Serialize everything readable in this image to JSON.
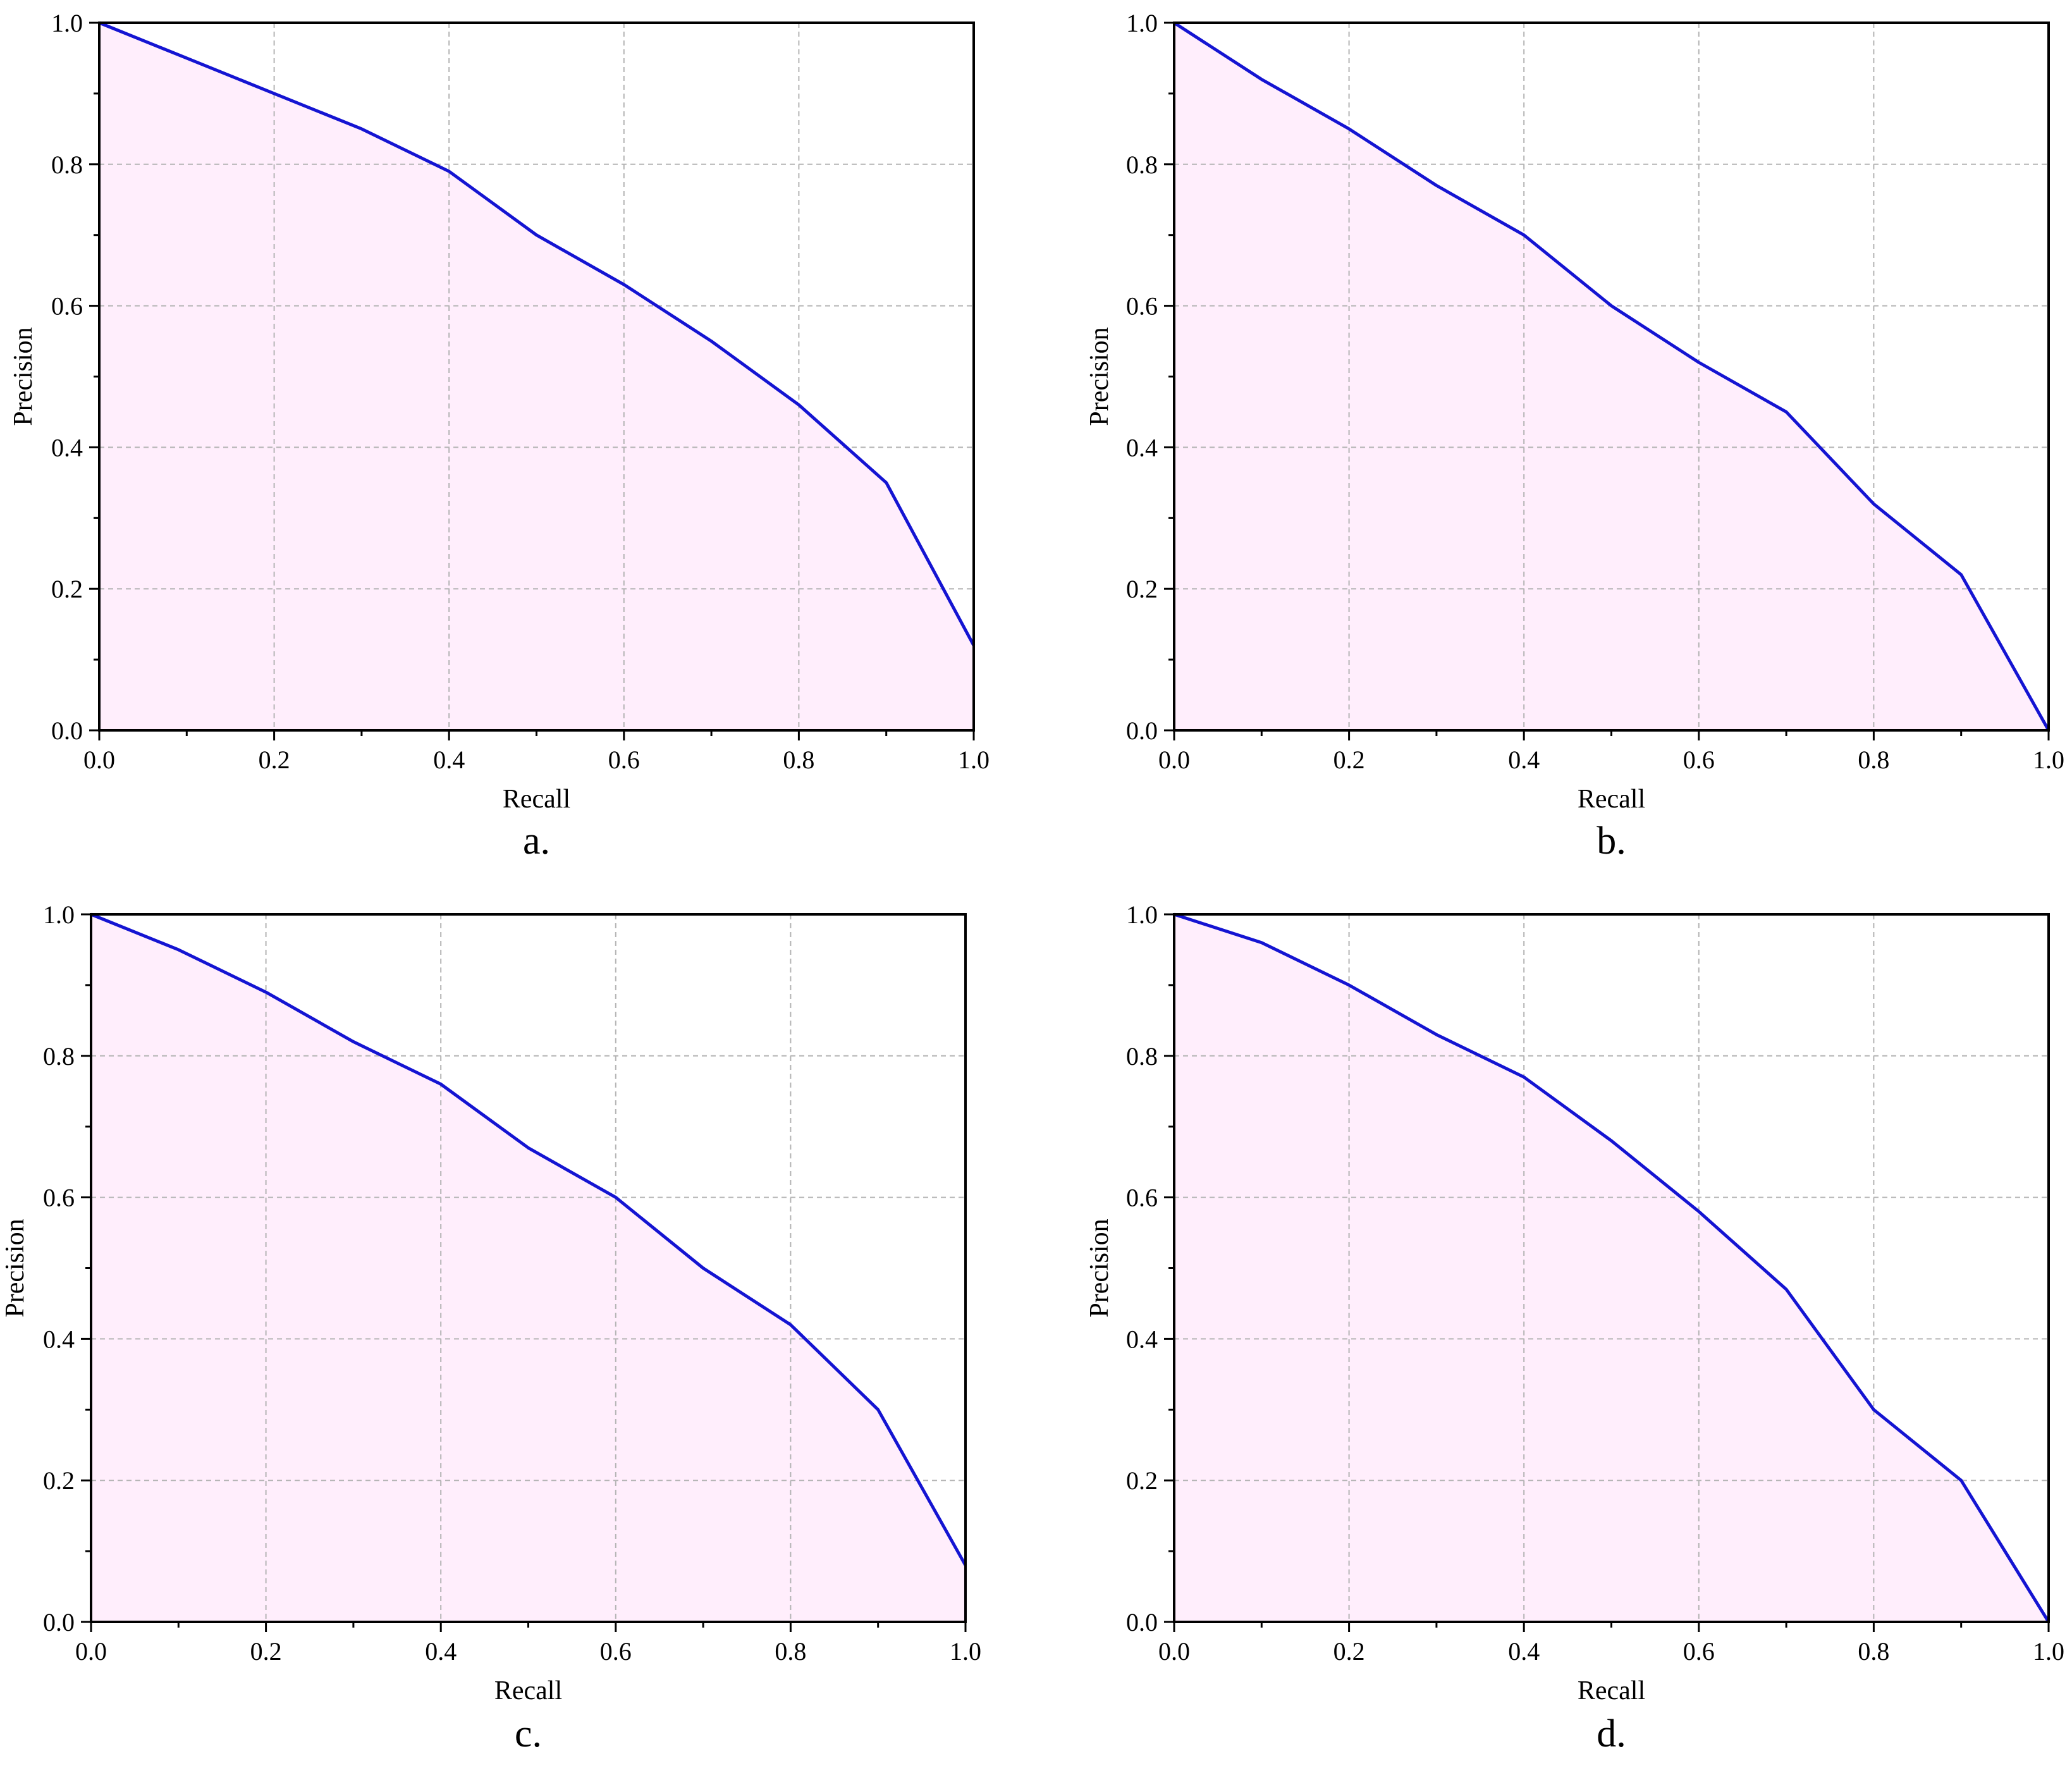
{
  "chart_data": [
    {
      "type": "area",
      "panel_label": "a.",
      "xlabel": "Recall",
      "ylabel": "Precision",
      "xlim": [
        0,
        1
      ],
      "ylim": [
        0,
        1
      ],
      "xticks": [
        "0.0",
        "0.2",
        "0.4",
        "0.6",
        "0.8",
        "1.0"
      ],
      "yticks": [
        "0.0",
        "0.2",
        "0.4",
        "0.6",
        "0.8",
        "1.0"
      ],
      "grid": true,
      "line_color": "#1414d2",
      "fill_color": "#ffeefc",
      "x": [
        0.0,
        0.1,
        0.2,
        0.3,
        0.4,
        0.5,
        0.6,
        0.7,
        0.8,
        0.9,
        1.0
      ],
      "y": [
        1.0,
        0.95,
        0.9,
        0.85,
        0.79,
        0.7,
        0.63,
        0.55,
        0.46,
        0.35,
        0.12
      ]
    },
    {
      "type": "area",
      "panel_label": "b.",
      "xlabel": "Recall",
      "ylabel": "Precision",
      "xlim": [
        0,
        1
      ],
      "ylim": [
        0,
        1
      ],
      "xticks": [
        "0.0",
        "0.2",
        "0.4",
        "0.6",
        "0.8",
        "1.0"
      ],
      "yticks": [
        "0.0",
        "0.2",
        "0.4",
        "0.6",
        "0.8",
        "1.0"
      ],
      "grid": true,
      "line_color": "#1414d2",
      "fill_color": "#ffeefc",
      "x": [
        0.0,
        0.1,
        0.2,
        0.3,
        0.4,
        0.5,
        0.6,
        0.7,
        0.8,
        0.9,
        1.0
      ],
      "y": [
        1.0,
        0.92,
        0.85,
        0.77,
        0.7,
        0.6,
        0.52,
        0.45,
        0.32,
        0.22,
        0.0
      ]
    },
    {
      "type": "area",
      "panel_label": "c.",
      "xlabel": "Recall",
      "ylabel": "Precision",
      "xlim": [
        0,
        1
      ],
      "ylim": [
        0,
        1
      ],
      "xticks": [
        "0.0",
        "0.2",
        "0.4",
        "0.6",
        "0.8",
        "1.0"
      ],
      "yticks": [
        "0.0",
        "0.2",
        "0.4",
        "0.6",
        "0.8",
        "1.0"
      ],
      "grid": true,
      "line_color": "#1414d2",
      "fill_color": "#ffeefc",
      "x": [
        0.0,
        0.1,
        0.2,
        0.3,
        0.4,
        0.5,
        0.6,
        0.7,
        0.8,
        0.9,
        1.0
      ],
      "y": [
        1.0,
        0.95,
        0.89,
        0.82,
        0.76,
        0.67,
        0.6,
        0.5,
        0.42,
        0.3,
        0.08
      ]
    },
    {
      "type": "area",
      "panel_label": "d.",
      "xlabel": "Recall",
      "ylabel": "Precision",
      "xlim": [
        0,
        1
      ],
      "ylim": [
        0,
        1
      ],
      "xticks": [
        "0.0",
        "0.2",
        "0.4",
        "0.6",
        "0.8",
        "1.0"
      ],
      "yticks": [
        "0.0",
        "0.2",
        "0.4",
        "0.6",
        "0.8",
        "1.0"
      ],
      "grid": true,
      "line_color": "#1414d2",
      "fill_color": "#ffeefc",
      "x": [
        0.0,
        0.1,
        0.2,
        0.3,
        0.4,
        0.5,
        0.6,
        0.7,
        0.8,
        0.9,
        1.0
      ],
      "y": [
        1.0,
        0.96,
        0.9,
        0.83,
        0.77,
        0.68,
        0.58,
        0.47,
        0.3,
        0.2,
        0.0
      ]
    }
  ]
}
